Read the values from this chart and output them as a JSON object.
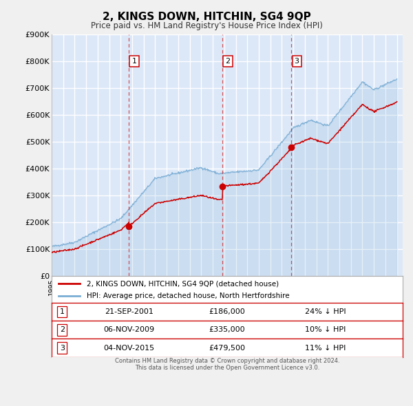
{
  "title": "2, KINGS DOWN, HITCHIN, SG4 9QP",
  "subtitle": "Price paid vs. HM Land Registry's House Price Index (HPI)",
  "bg_color": "#f0f0f0",
  "plot_bg_color": "#dce8f8",
  "grid_color": "#ffffff",
  "line1_color": "#cc0000",
  "line2_color": "#7aadd4",
  "ylim": [
    0,
    900000
  ],
  "yticks": [
    0,
    100000,
    200000,
    300000,
    400000,
    500000,
    600000,
    700000,
    800000,
    900000
  ],
  "ytick_labels": [
    "£0",
    "£100K",
    "£200K",
    "£300K",
    "£400K",
    "£500K",
    "£600K",
    "£700K",
    "£800K",
    "£900K"
  ],
  "sale_dates": [
    2001.72,
    2009.84,
    2015.84
  ],
  "sale_prices": [
    186000,
    335000,
    479500
  ],
  "sale_labels": [
    "1",
    "2",
    "3"
  ],
  "sale_info": [
    {
      "num": "1",
      "date": "21-SEP-2001",
      "price": "£186,000",
      "pct": "24% ↓ HPI"
    },
    {
      "num": "2",
      "date": "06-NOV-2009",
      "price": "£335,000",
      "pct": "10% ↓ HPI"
    },
    {
      "num": "3",
      "date": "04-NOV-2015",
      "price": "£479,500",
      "pct": "11% ↓ HPI"
    }
  ],
  "legend1_label": "2, KINGS DOWN, HITCHIN, SG4 9QP (detached house)",
  "legend2_label": "HPI: Average price, detached house, North Hertfordshire",
  "footer1": "Contains HM Land Registry data © Crown copyright and database right 2024.",
  "footer2": "This data is licensed under the Open Government Licence v3.0.",
  "xlim_start": 1995.0,
  "xlim_end": 2025.5
}
